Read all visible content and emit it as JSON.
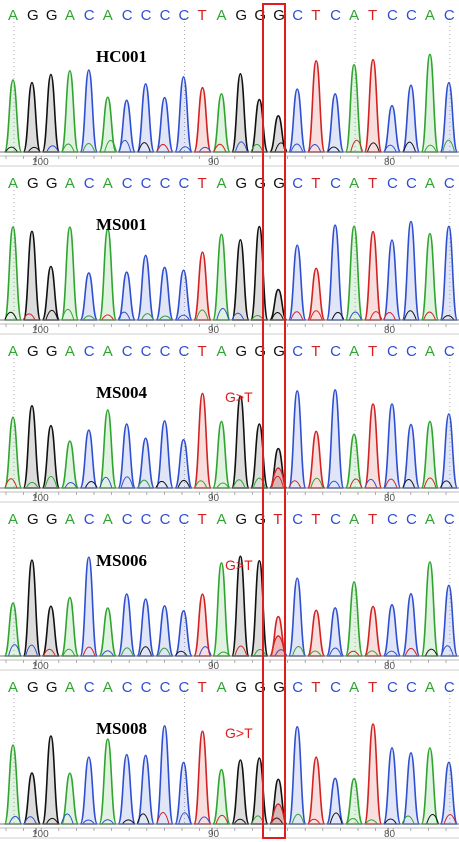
{
  "colors": {
    "A": "#2fa52f",
    "C": "#2f4fd1",
    "G": "#111111",
    "T": "#d42222",
    "highlight": "#e21b1b",
    "ticks": "#555555"
  },
  "panels": [
    {
      "label": "HC001",
      "bases": [
        "A",
        "G",
        "G",
        "A",
        "C",
        "A",
        "C",
        "C",
        "C",
        "C",
        "T",
        "A",
        "G",
        "G",
        "G",
        "C",
        "T",
        "C",
        "A",
        "T",
        "C",
        "C",
        "A",
        "C"
      ],
      "mutation": "",
      "axis": [
        "100",
        "90",
        "80"
      ]
    },
    {
      "label": "MS001",
      "bases": [
        "A",
        "G",
        "G",
        "A",
        "C",
        "A",
        "C",
        "C",
        "C",
        "C",
        "T",
        "A",
        "G",
        "G",
        "G",
        "C",
        "T",
        "C",
        "A",
        "T",
        "C",
        "C",
        "A",
        "C"
      ],
      "mutation": "",
      "axis": [
        "100",
        "90",
        "80"
      ]
    },
    {
      "label": "MS004",
      "bases": [
        "A",
        "G",
        "G",
        "A",
        "C",
        "A",
        "C",
        "C",
        "C",
        "C",
        "T",
        "A",
        "G",
        "G",
        "G",
        "C",
        "T",
        "C",
        "A",
        "T",
        "C",
        "C",
        "A",
        "C"
      ],
      "mutation": "G>T",
      "axis": [
        "100",
        "90",
        "80"
      ]
    },
    {
      "label": "MS006",
      "bases": [
        "A",
        "G",
        "G",
        "A",
        "C",
        "A",
        "C",
        "C",
        "C",
        "C",
        "T",
        "A",
        "G",
        "G",
        "T",
        "C",
        "T",
        "C",
        "A",
        "T",
        "C",
        "C",
        "A",
        "C"
      ],
      "mutation": "G>T",
      "axis": [
        "100",
        "90",
        "80"
      ]
    },
    {
      "label": "MS008",
      "bases": [
        "A",
        "G",
        "G",
        "A",
        "C",
        "A",
        "C",
        "C",
        "C",
        "C",
        "T",
        "A",
        "G",
        "G",
        "G",
        "C",
        "T",
        "C",
        "A",
        "T",
        "C",
        "C",
        "A",
        "C"
      ],
      "mutation": "G>T",
      "axis": [
        "100",
        "90",
        "80"
      ]
    }
  ]
}
